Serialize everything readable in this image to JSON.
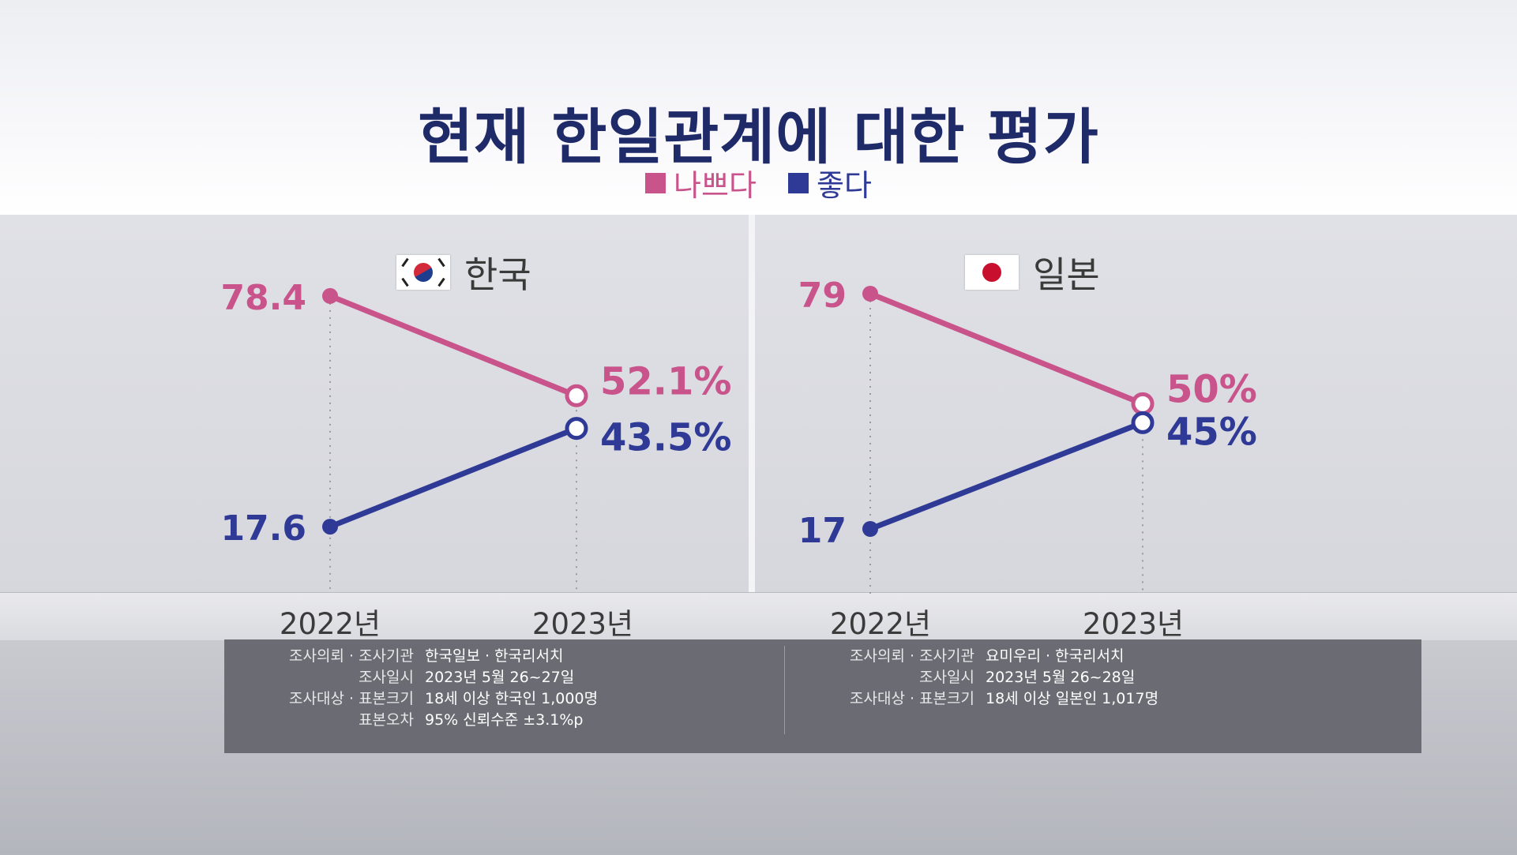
{
  "title": "현재 한일관계에 대한 평가",
  "legend": [
    {
      "label": "나쁘다",
      "color": "#c8548b"
    },
    {
      "label": "좋다",
      "color": "#2f3a96"
    }
  ],
  "chart_data": [
    {
      "type": "line",
      "country": "한국",
      "x": [
        "2022년",
        "2023년"
      ],
      "series": [
        {
          "name": "나쁘다",
          "values": [
            78.4,
            52.1
          ],
          "labels": [
            "78.4",
            "52.1%"
          ],
          "color": "#c8548b"
        },
        {
          "name": "좋다",
          "values": [
            17.6,
            43.5
          ],
          "labels": [
            "17.6",
            "43.5%"
          ],
          "color": "#2f3a96"
        }
      ]
    },
    {
      "type": "line",
      "country": "일본",
      "x": [
        "2022년",
        "2023년"
      ],
      "series": [
        {
          "name": "나쁘다",
          "values": [
            79,
            50
          ],
          "labels": [
            "79",
            "50%"
          ],
          "color": "#c8548b"
        },
        {
          "name": "좋다",
          "values": [
            17,
            45
          ],
          "labels": [
            "17",
            "45%"
          ],
          "color": "#2f3a96"
        }
      ]
    }
  ],
  "survey": {
    "korea": [
      {
        "label": "조사의뢰 · 조사기관",
        "value": "한국일보 · 한국리서치"
      },
      {
        "label": "조사일시",
        "value": "2023년 5월 26~27일"
      },
      {
        "label": "조사대상 · 표본크기",
        "value": "18세 이상 한국인 1,000명"
      },
      {
        "label": "표본오차",
        "value": "95% 신뢰수준 ±3.1%p"
      }
    ],
    "japan": [
      {
        "label": "조사의뢰 · 조사기관",
        "value": "요미우리 · 한국리서치"
      },
      {
        "label": "조사일시",
        "value": "2023년 5월 26~28일"
      },
      {
        "label": "조사대상 · 표본크기",
        "value": "18세 이상 일본인 1,017명"
      }
    ]
  }
}
